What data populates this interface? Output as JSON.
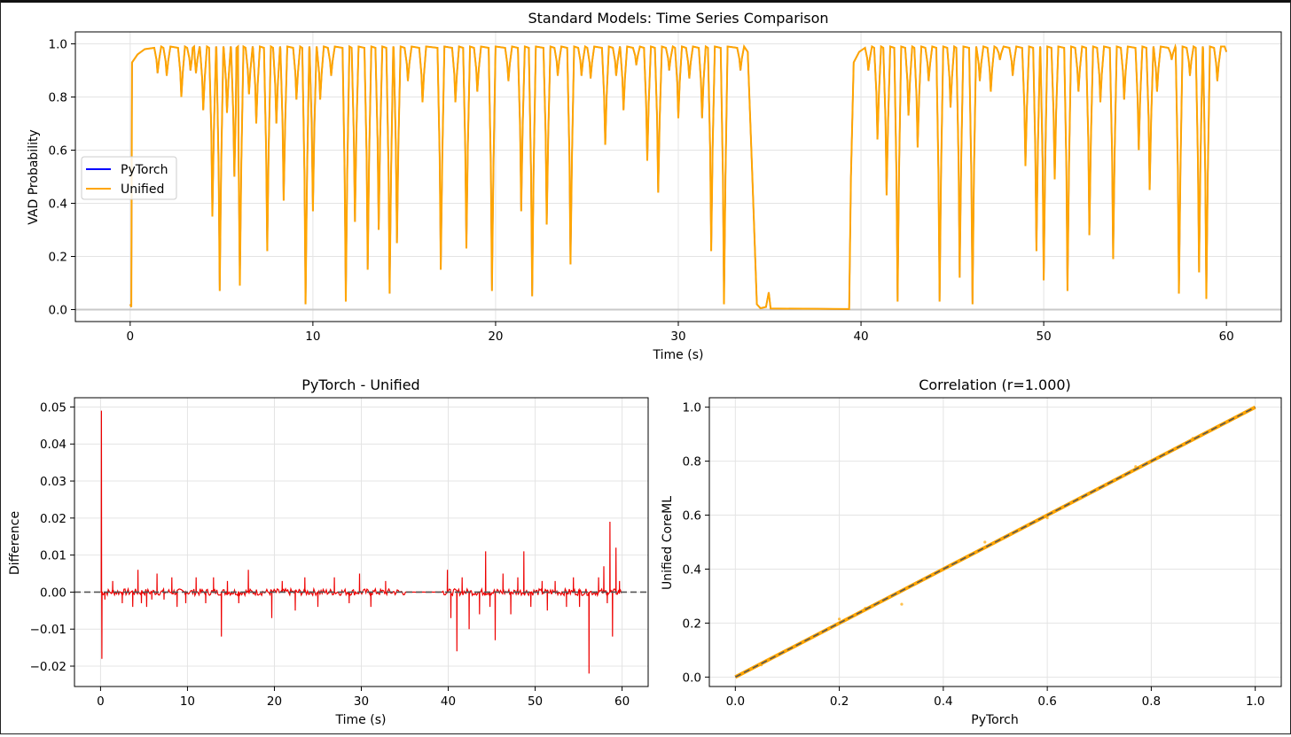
{
  "chart_data": [
    {
      "type": "line",
      "title": "Standard Models: Time Series Comparison",
      "xlabel": "Time (s)",
      "ylabel": "VAD Probability",
      "xlim": [
        -3,
        63
      ],
      "ylim": [
        -0.045,
        1.045
      ],
      "xticks": [
        0,
        10,
        20,
        30,
        40,
        50,
        60
      ],
      "yticks": [
        0.0,
        0.2,
        0.4,
        0.6,
        0.8,
        1.0
      ],
      "ytick_labels": [
        "0.0",
        "0.2",
        "0.4",
        "0.6",
        "0.8",
        "1.0"
      ],
      "grid": true,
      "legend": "center-left",
      "hline": 0,
      "speech_dips": [
        [
          1.5,
          0.89
        ],
        [
          2.0,
          0.88
        ],
        [
          2.8,
          0.8
        ],
        [
          3.3,
          0.9
        ],
        [
          3.6,
          0.89
        ],
        [
          4.0,
          0.75
        ],
        [
          4.5,
          0.35
        ],
        [
          4.9,
          0.07
        ],
        [
          5.3,
          0.74
        ],
        [
          5.7,
          0.5
        ],
        [
          6.0,
          0.09
        ],
        [
          6.5,
          0.81
        ],
        [
          6.9,
          0.7
        ],
        [
          7.5,
          0.22
        ],
        [
          8.0,
          0.7
        ],
        [
          8.4,
          0.41
        ],
        [
          9.1,
          0.79
        ],
        [
          9.6,
          0.02
        ],
        [
          10.0,
          0.37
        ],
        [
          10.4,
          0.79
        ],
        [
          11.0,
          0.88
        ],
        [
          11.8,
          0.03
        ],
        [
          12.3,
          0.33
        ],
        [
          13.0,
          0.15
        ],
        [
          13.6,
          0.3
        ],
        [
          14.2,
          0.06
        ],
        [
          14.6,
          0.25
        ],
        [
          15.2,
          0.86
        ],
        [
          16.0,
          0.78
        ],
        [
          17.0,
          0.15
        ],
        [
          17.8,
          0.78
        ],
        [
          18.4,
          0.23
        ],
        [
          19.0,
          0.82
        ],
        [
          19.8,
          0.07
        ],
        [
          20.7,
          0.86
        ],
        [
          21.4,
          0.37
        ],
        [
          22.0,
          0.05
        ],
        [
          22.8,
          0.32
        ],
        [
          23.4,
          0.88
        ],
        [
          24.1,
          0.17
        ],
        [
          24.7,
          0.88
        ],
        [
          25.2,
          0.87
        ],
        [
          26.0,
          0.62
        ],
        [
          26.6,
          0.88
        ],
        [
          27.0,
          0.75
        ],
        [
          27.7,
          0.92
        ],
        [
          28.3,
          0.56
        ],
        [
          28.9,
          0.44
        ],
        [
          29.5,
          0.9
        ],
        [
          30.0,
          0.72
        ],
        [
          30.6,
          0.87
        ],
        [
          31.3,
          0.72
        ],
        [
          31.8,
          0.22
        ],
        [
          32.5,
          0.02
        ],
        [
          33.4,
          0.9
        ]
      ],
      "silence": [
        34.4,
        39.4
      ],
      "speech_dips_2": [
        [
          40.4,
          0.9
        ],
        [
          40.9,
          0.64
        ],
        [
          41.4,
          0.43
        ],
        [
          42.0,
          0.03
        ],
        [
          42.6,
          0.73
        ],
        [
          43.1,
          0.61
        ],
        [
          43.7,
          0.86
        ],
        [
          44.3,
          0.03
        ],
        [
          44.9,
          0.76
        ],
        [
          45.4,
          0.12
        ],
        [
          46.1,
          0.02
        ],
        [
          46.5,
          0.86
        ],
        [
          47.1,
          0.82
        ],
        [
          47.6,
          0.94
        ],
        [
          48.3,
          0.88
        ],
        [
          49.0,
          0.54
        ],
        [
          49.6,
          0.22
        ],
        [
          50.0,
          0.11
        ],
        [
          50.6,
          0.49
        ],
        [
          51.3,
          0.07
        ],
        [
          51.9,
          0.82
        ],
        [
          52.5,
          0.28
        ],
        [
          53.1,
          0.78
        ],
        [
          53.8,
          0.19
        ],
        [
          54.4,
          0.79
        ],
        [
          55.2,
          0.6
        ],
        [
          55.8,
          0.45
        ],
        [
          56.2,
          0.82
        ],
        [
          57.0,
          0.94
        ],
        [
          57.4,
          0.06
        ],
        [
          58.0,
          0.88
        ],
        [
          58.5,
          0.14
        ],
        [
          58.9,
          0.04
        ],
        [
          59.5,
          0.86
        ]
      ],
      "series": [
        {
          "name": "PyTorch",
          "color": "#0000ff"
        },
        {
          "name": "Unified",
          "color": "#ffa500"
        }
      ]
    },
    {
      "type": "line",
      "title": "PyTorch - Unified",
      "xlabel": "Time (s)",
      "ylabel": "Difference",
      "xlim": [
        -3,
        63
      ],
      "ylim": [
        -0.0255,
        0.0525
      ],
      "xticks": [
        0,
        10,
        20,
        30,
        40,
        50,
        60
      ],
      "yticks": [
        -0.02,
        -0.01,
        0.0,
        0.01,
        0.02,
        0.03,
        0.04,
        0.05
      ],
      "ytick_labels": [
        "−0.02",
        "−0.01",
        "0.00",
        "0.01",
        "0.02",
        "0.03",
        "0.04",
        "0.05"
      ],
      "grid": true,
      "zero_line": true,
      "spikes": [
        [
          0.1,
          0.049
        ],
        [
          0.15,
          -0.018
        ],
        [
          0.5,
          -0.002
        ],
        [
          1.4,
          0.003
        ],
        [
          2.5,
          -0.003
        ],
        [
          3.7,
          -0.004
        ],
        [
          4.3,
          0.006
        ],
        [
          4.7,
          -0.003
        ],
        [
          5.3,
          -0.004
        ],
        [
          5.9,
          -0.002
        ],
        [
          6.5,
          0.005
        ],
        [
          7.3,
          -0.002
        ],
        [
          8.2,
          0.004
        ],
        [
          8.8,
          -0.004
        ],
        [
          9.8,
          -0.003
        ],
        [
          11.0,
          0.004
        ],
        [
          12.1,
          -0.003
        ],
        [
          13.0,
          0.004
        ],
        [
          13.9,
          -0.012
        ],
        [
          14.6,
          0.003
        ],
        [
          15.9,
          -0.003
        ],
        [
          17.0,
          0.006
        ],
        [
          19.7,
          -0.007
        ],
        [
          20.9,
          0.003
        ],
        [
          22.4,
          -0.005
        ],
        [
          23.5,
          0.004
        ],
        [
          25.0,
          -0.004
        ],
        [
          26.9,
          0.004
        ],
        [
          28.6,
          -0.003
        ],
        [
          29.8,
          0.005
        ],
        [
          31.1,
          -0.004
        ],
        [
          32.8,
          0.003
        ],
        [
          39.9,
          0.006
        ],
        [
          40.3,
          -0.007
        ],
        [
          41.0,
          -0.016
        ],
        [
          41.6,
          0.004
        ],
        [
          42.4,
          -0.01
        ],
        [
          43.6,
          -0.006
        ],
        [
          44.3,
          0.011
        ],
        [
          44.8,
          -0.004
        ],
        [
          45.4,
          -0.013
        ],
        [
          46.3,
          0.005
        ],
        [
          47.2,
          -0.006
        ],
        [
          48.0,
          0.004
        ],
        [
          48.7,
          0.011
        ],
        [
          49.5,
          -0.004
        ],
        [
          50.8,
          0.003
        ],
        [
          51.4,
          -0.005
        ],
        [
          52.3,
          0.003
        ],
        [
          53.6,
          -0.004
        ],
        [
          54.4,
          0.004
        ],
        [
          55.1,
          -0.004
        ],
        [
          56.2,
          -0.022
        ],
        [
          57.3,
          0.004
        ],
        [
          57.9,
          0.007
        ],
        [
          58.3,
          -0.003
        ],
        [
          58.6,
          0.019
        ],
        [
          58.9,
          -0.012
        ],
        [
          59.3,
          0.012
        ],
        [
          59.7,
          0.003
        ]
      ],
      "color": "#ee0000"
    },
    {
      "type": "scatter",
      "title": "Correlation (r=1.000)",
      "xlabel": "PyTorch",
      "ylabel": "Unified CoreML",
      "xlim": [
        -0.05,
        1.05
      ],
      "ylim": [
        -0.035,
        1.035
      ],
      "xticks": [
        0.0,
        0.2,
        0.4,
        0.6,
        0.8,
        1.0
      ],
      "yticks": [
        0.0,
        0.2,
        0.4,
        0.6,
        0.8,
        1.0
      ],
      "tick_labels": [
        "0.0",
        "0.2",
        "0.4",
        "0.6",
        "0.8",
        "1.0"
      ],
      "grid": true,
      "reference_line": [
        [
          0,
          0
        ],
        [
          1,
          1
        ]
      ],
      "outliers": [
        [
          0.05,
          0.045
        ],
        [
          0.09,
          0.09
        ],
        [
          0.2,
          0.215
        ],
        [
          0.25,
          0.255
        ],
        [
          0.32,
          0.27
        ],
        [
          0.48,
          0.5
        ],
        [
          0.52,
          0.52
        ],
        [
          0.6,
          0.59
        ],
        [
          0.77,
          0.78
        ],
        [
          0.88,
          0.885
        ]
      ],
      "point_color": "#ffa500",
      "line_color": "#555555"
    }
  ]
}
